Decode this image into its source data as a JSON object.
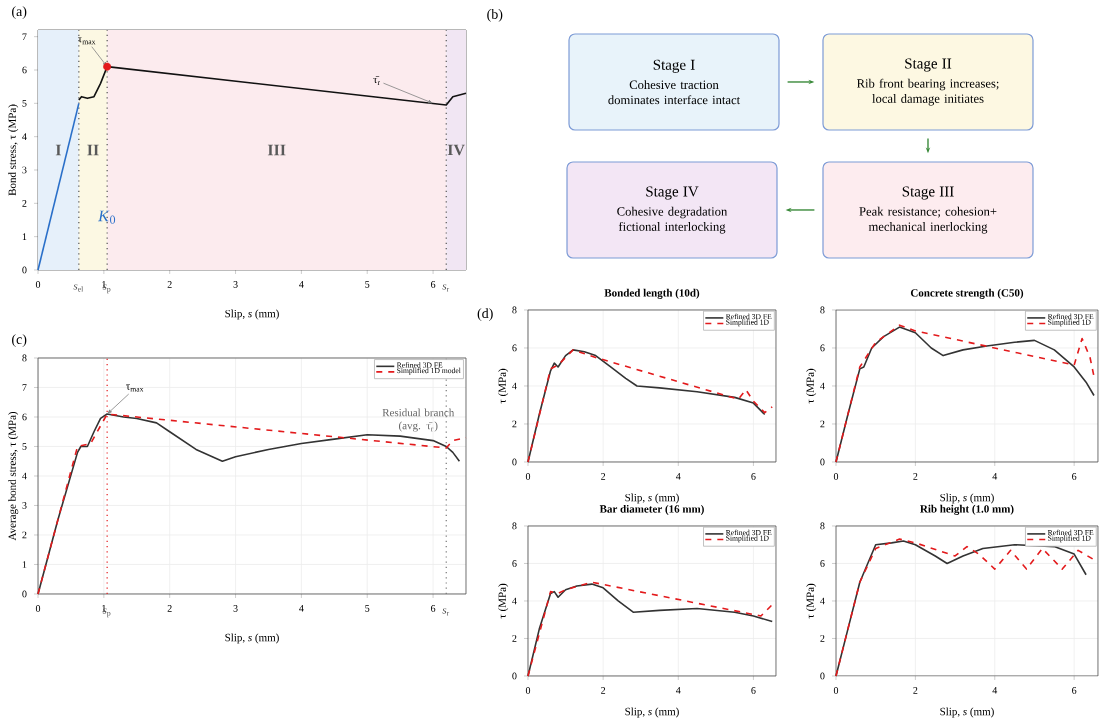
{
  "chart_data": [
    {
      "type": "line",
      "title": "(a)",
      "xlabel": "Slip, *s* (mm)",
      "ylabel": "Bond stress, τ (MPa)",
      "xlim": [
        0,
        6.5
      ],
      "ylim": [
        0,
        7.2
      ],
      "xticks": [
        0,
        1,
        2,
        3,
        4,
        5,
        6
      ],
      "yticks": [
        0,
        1,
        2,
        3,
        4,
        5,
        6,
        7
      ],
      "legend": false,
      "series": [
        {
          "color": "#2a6fc9",
          "x": [
            0,
            0.62
          ],
          "values": [
            0,
            5.0
          ]
        },
        {
          "color": "#111111",
          "x": [
            0.62,
            0.66,
            0.75,
            0.85,
            0.95,
            1.05,
            6.2,
            6.3,
            6.5
          ],
          "values": [
            5.1,
            5.2,
            5.15,
            5.2,
            5.6,
            6.1,
            4.95,
            5.2,
            5.3
          ]
        },
        {
          "type": "scatter",
          "color": "#e31a1c",
          "x": [
            1.05
          ],
          "values": [
            6.1
          ]
        }
      ],
      "bands": [
        {
          "axis": "x",
          "from": 0,
          "to": 0.62,
          "label": "I",
          "color": "#e6f0fa"
        },
        {
          "axis": "x",
          "from": 0.62,
          "to": 1.05,
          "label": "II",
          "color": "#fcf8e3"
        },
        {
          "axis": "x",
          "from": 1.05,
          "to": 6.2,
          "label": "III",
          "color": "#fcebee"
        },
        {
          "axis": "x",
          "from": 6.2,
          "to": 6.5,
          "label": "IV",
          "color": "#f1e6f3"
        }
      ],
      "ref_lines": [
        {
          "axis": "x",
          "value": 0.62,
          "label": "*s*$_{el}$",
          "color": "#555555",
          "line_style": "dotted"
        },
        {
          "axis": "x",
          "value": 1.05,
          "label": "*s*$_{p}$",
          "color": "#555555",
          "line_style": "dotted"
        },
        {
          "axis": "x",
          "value": 6.2,
          "label": "*s*$_{r}$",
          "color": "#555555",
          "line_style": "dotted"
        }
      ],
      "annotations": [
        "*K*$_{0}$",
        {
          "text": "τ$_{max}$",
          "x": 1.05,
          "y": 6.1
        },
        {
          "text": "τ̄$_{r}$",
          "x": 6.0,
          "y": 5.0
        }
      ]
    },
    {
      "type": "other",
      "title": "(b)",
      "annotations": [
        "Stage I",
        "Cohesive traction dominates interface intact",
        "Stage II",
        "Rib front bearing increases; local damage initiates",
        "Stage III",
        "Peak resistance; cohesion+ mechanical inerlocking",
        "Stage IV",
        "Cohesive degradation fictional interlocking"
      ]
    },
    {
      "type": "line",
      "title": "(c)",
      "xlabel": "Slip, *s* (mm)",
      "ylabel": "Average bond stress, τ (MPa)",
      "xlim": [
        0,
        6.5
      ],
      "ylim": [
        0,
        8
      ],
      "xticks": [
        0,
        1,
        2,
        3,
        4,
        5,
        6
      ],
      "yticks": [
        0,
        1,
        2,
        3,
        4,
        5,
        6,
        7,
        8
      ],
      "grid": true,
      "legend": "top right",
      "series": [
        {
          "name": "Refined 3D FE",
          "color": "#333333",
          "x": [
            0,
            0.3,
            0.6,
            0.65,
            0.75,
            0.85,
            0.95,
            1.05,
            1.3,
            1.5,
            1.8,
            2.0,
            2.4,
            2.8,
            3.0,
            3.5,
            4.0,
            4.5,
            5.0,
            5.5,
            6.0,
            6.2,
            6.3,
            6.4
          ],
          "values": [
            0,
            2.5,
            4.8,
            5.0,
            5.0,
            5.5,
            5.95,
            6.1,
            6.0,
            5.95,
            5.8,
            5.5,
            4.9,
            4.5,
            4.65,
            4.9,
            5.1,
            5.25,
            5.4,
            5.35,
            5.2,
            5.0,
            4.8,
            4.5
          ]
        },
        {
          "name": "Simplified 1D model",
          "color": "#e31a1c",
          "line_style": "dashed",
          "x": [
            0,
            0.6,
            0.8,
            1.05,
            6.2,
            6.3,
            6.5
          ],
          "values": [
            0,
            5.0,
            5.1,
            6.1,
            4.95,
            5.2,
            5.3
          ]
        }
      ],
      "ref_lines": [
        {
          "axis": "x",
          "value": 1.05,
          "label": "*s*$_{p}$",
          "color": "#e31a1c",
          "line_style": "dotted"
        },
        {
          "axis": "x",
          "value": 6.2,
          "label": "*s*$_{r}$",
          "color": "#777777",
          "line_style": "dotted"
        }
      ],
      "annotations": [
        {
          "text": "τ$_{max}$",
          "x": 1.05,
          "y": 6.1
        },
        {
          "text": "Residual branch (avg. τ̄$_{r}$)",
          "x": 6.2,
          "y": 4.95
        }
      ]
    },
    {
      "type": "line",
      "title": "Bonded length (10d)",
      "xlabel": "Slip, *s* (mm)",
      "ylabel": "τ (MPa)",
      "xlim": [
        0,
        6.6
      ],
      "ylim": [
        0,
        8
      ],
      "xticks": [
        0,
        2,
        4,
        6
      ],
      "yticks": [
        0,
        2,
        4,
        6,
        8
      ],
      "grid": true,
      "legend": "top right",
      "annotations": [
        "(d)"
      ],
      "series": [
        {
          "name": "Refined 3D FE",
          "color": "#333333",
          "x": [
            0,
            0.3,
            0.6,
            0.7,
            0.8,
            1.0,
            1.2,
            1.5,
            1.8,
            2.2,
            2.6,
            2.9,
            3.5,
            4.5,
            5.5,
            6.0,
            6.3
          ],
          "values": [
            0,
            2.5,
            4.8,
            5.2,
            5.0,
            5.6,
            5.9,
            5.8,
            5.6,
            5.0,
            4.4,
            4.0,
            3.9,
            3.7,
            3.4,
            3.1,
            2.5
          ]
        },
        {
          "name": "Simplified 1D",
          "color": "#e31a1c",
          "line_style": "dashed",
          "x": [
            0,
            0.6,
            0.8,
            1.2,
            1.8,
            5.6,
            5.8,
            6.0,
            6.3,
            6.5
          ],
          "values": [
            0,
            4.9,
            5.1,
            5.9,
            5.5,
            3.3,
            3.8,
            3.2,
            2.6,
            2.9
          ]
        }
      ]
    },
    {
      "type": "line",
      "title": "Concrete strength (C50)",
      "xlabel": "Slip, *s* (mm)",
      "ylabel": "τ (MPa)",
      "xlim": [
        0,
        6.6
      ],
      "ylim": [
        0,
        8
      ],
      "xticks": [
        0,
        2,
        4,
        6
      ],
      "yticks": [
        0,
        2,
        4,
        6,
        8
      ],
      "grid": true,
      "legend": "top right",
      "series": [
        {
          "name": "Refined 3D FE",
          "color": "#333333",
          "x": [
            0,
            0.3,
            0.6,
            0.7,
            0.9,
            1.2,
            1.6,
            2.0,
            2.4,
            2.7,
            3.2,
            3.8,
            4.5,
            5.0,
            5.5,
            6.0,
            6.3,
            6.5
          ],
          "values": [
            0,
            2.5,
            4.9,
            5.0,
            6.0,
            6.6,
            7.1,
            6.8,
            6.0,
            5.6,
            5.9,
            6.1,
            6.3,
            6.4,
            5.9,
            5.0,
            4.2,
            3.5
          ]
        },
        {
          "name": "Simplified 1D",
          "color": "#e31a1c",
          "line_style": "dashed",
          "x": [
            0,
            0.6,
            1.0,
            1.6,
            2.0,
            6.0,
            6.2,
            6.4,
            6.5
          ],
          "values": [
            0,
            5.0,
            6.3,
            7.2,
            6.9,
            5.1,
            6.5,
            5.5,
            4.5
          ]
        }
      ]
    },
    {
      "type": "line",
      "title": "Bar diameter (16 mm)",
      "xlabel": "Slip, *s* (mm)",
      "ylabel": "τ (MPa)",
      "xlim": [
        0,
        6.6
      ],
      "ylim": [
        0,
        8
      ],
      "xticks": [
        0,
        2,
        4,
        6
      ],
      "yticks": [
        0,
        2,
        4,
        6,
        8
      ],
      "grid": true,
      "legend": "top right",
      "series": [
        {
          "name": "Refined 3D FE",
          "color": "#333333",
          "x": [
            0,
            0.3,
            0.6,
            0.7,
            0.8,
            1.0,
            1.3,
            1.7,
            2.0,
            2.4,
            2.8,
            3.5,
            4.5,
            5.5,
            6.0,
            6.5
          ],
          "values": [
            0,
            2.5,
            4.4,
            4.5,
            4.2,
            4.6,
            4.8,
            4.9,
            4.7,
            4.0,
            3.4,
            3.5,
            3.6,
            3.4,
            3.2,
            2.9
          ]
        },
        {
          "name": "Simplified 1D",
          "color": "#e31a1c",
          "line_style": "dashed",
          "x": [
            0,
            0.6,
            0.8,
            1.0,
            1.7,
            6.2,
            6.4,
            6.5
          ],
          "values": [
            0,
            4.5,
            4.4,
            4.6,
            5.0,
            3.2,
            3.6,
            3.8
          ]
        }
      ]
    },
    {
      "type": "line",
      "title": "Rib height (1.0 mm)",
      "xlabel": "Slip, *s* (mm)",
      "ylabel": "τ (MPa)",
      "xlim": [
        0,
        6.6
      ],
      "ylim": [
        0,
        8
      ],
      "xticks": [
        0,
        2,
        4,
        6
      ],
      "yticks": [
        0,
        2,
        4,
        6,
        8
      ],
      "grid": true,
      "legend": "top right",
      "series": [
        {
          "name": "Refined 3D FE",
          "color": "#333333",
          "x": [
            0,
            0.3,
            0.6,
            1.0,
            1.4,
            1.7,
            2.0,
            2.5,
            2.8,
            3.2,
            3.7,
            4.5,
            5.5,
            6.0,
            6.3
          ],
          "values": [
            0,
            2.5,
            5.0,
            7.0,
            7.1,
            7.2,
            7.0,
            6.4,
            6.0,
            6.4,
            6.8,
            7.0,
            6.9,
            6.5,
            5.4
          ]
        },
        {
          "name": "Simplified 1D",
          "color": "#e31a1c",
          "line_style": "dashed",
          "x": [
            0,
            0.6,
            1.0,
            1.6,
            2.0,
            3.0,
            3.3,
            3.6,
            4.0,
            4.4,
            4.8,
            5.2,
            5.7,
            6.1,
            6.5
          ],
          "values": [
            0,
            5.0,
            6.8,
            7.3,
            7.1,
            6.4,
            6.9,
            6.5,
            5.7,
            6.7,
            5.7,
            6.8,
            5.7,
            6.7,
            6.2
          ]
        }
      ]
    }
  ]
}
